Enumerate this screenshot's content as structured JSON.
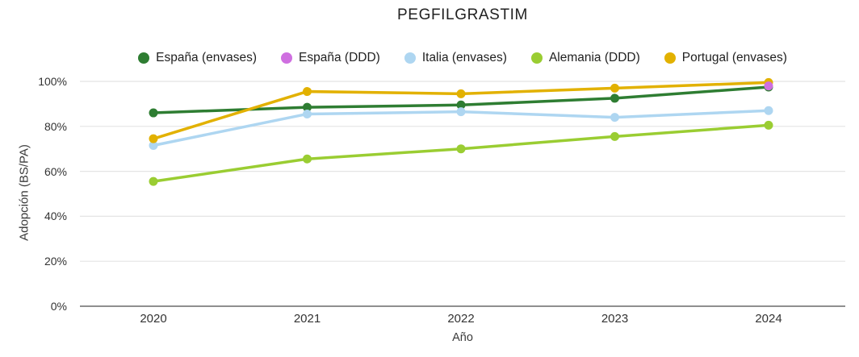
{
  "chart_data": {
    "type": "line",
    "title": "PEGFILGRASTIM",
    "x": [
      "2020",
      "2021",
      "2022",
      "2023",
      "2024"
    ],
    "xlabel": "Año",
    "ylabel": "Adopción (BS/PA)",
    "ylim": [
      0,
      100
    ],
    "ytick_values": [
      0,
      20,
      40,
      60,
      80,
      100
    ],
    "ytick_labels": [
      "0%",
      "20%",
      "40%",
      "60%",
      "80%",
      "100%"
    ],
    "grid": true,
    "legend_position": "top",
    "background": "#ffffff",
    "axis_line_color": "#8f8f8f",
    "gridline_color": "#e4e4e4",
    "series": [
      {
        "name": "España (envases)",
        "color": "#2e7d32",
        "values": [
          86,
          88.5,
          89.5,
          92.5,
          97.5
        ]
      },
      {
        "name": "España (DDD)",
        "color": "#cf6fe0",
        "values": [
          null,
          null,
          null,
          null,
          98
        ]
      },
      {
        "name": "Italia (envases)",
        "color": "#aed6f1",
        "values": [
          71.5,
          85.5,
          86.5,
          84,
          87
        ]
      },
      {
        "name": "Alemania (DDD)",
        "color": "#9acd32",
        "values": [
          55.5,
          65.5,
          70,
          75.5,
          80.5
        ]
      },
      {
        "name": "Portugal (envases)",
        "color": "#e2b100",
        "values": [
          74.5,
          95.5,
          94.5,
          97,
          99.5
        ]
      }
    ]
  }
}
